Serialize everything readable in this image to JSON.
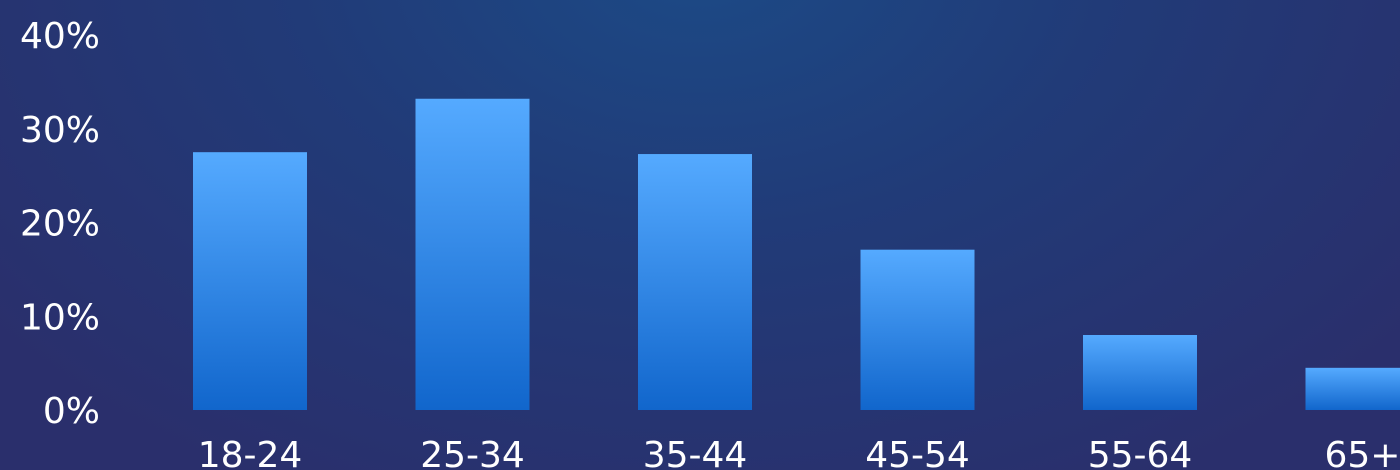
{
  "chart_data": {
    "type": "bar",
    "categories": [
      "18-24",
      "25-34",
      "35-44",
      "45-54",
      "55-64",
      "65+"
    ],
    "values": [
      27.5,
      33.2,
      27.3,
      17.1,
      8.0,
      4.5
    ],
    "ylim": [
      0,
      40
    ],
    "yticks": [
      0,
      10,
      20,
      30,
      40
    ],
    "ytick_labels": [
      "0%",
      "10%",
      "20%",
      "30%",
      "40%"
    ],
    "title": "",
    "xlabel": "",
    "ylabel": "",
    "grid": false,
    "colors": {
      "bar_top": "#55aaff",
      "bar_bottom": "#1166cc",
      "text": "#ffffff"
    }
  }
}
